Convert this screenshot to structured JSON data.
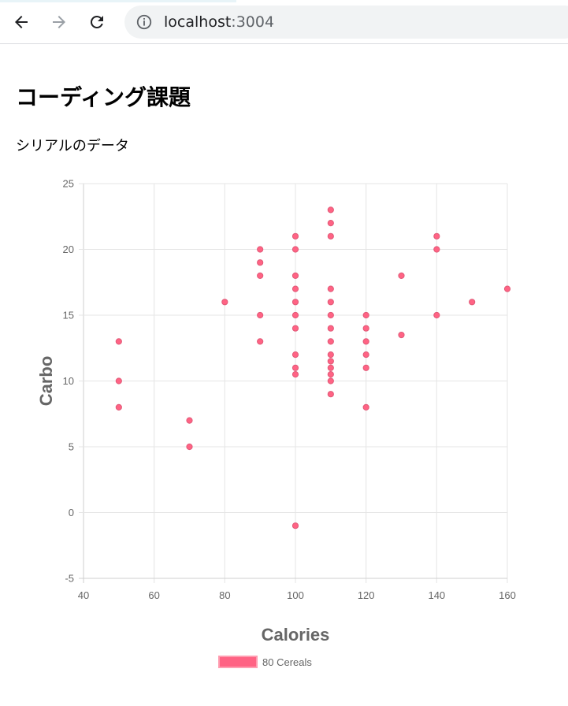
{
  "browser": {
    "url_host": "localhost",
    "url_port": ":3004"
  },
  "page": {
    "title": "コーディング課題",
    "subtitle": "シリアルのデータ"
  },
  "colors": {
    "point_fill": "#ff6384",
    "point_stroke": "#e05a78",
    "grid": "#e5e5e5",
    "axis": "#cfcfcf",
    "text": "#666666"
  },
  "chart_data": {
    "type": "scatter",
    "xlabel": "Calories",
    "ylabel": "Carbo",
    "xlim": [
      40,
      160
    ],
    "ylim": [
      -5,
      25
    ],
    "x_ticks": [
      40,
      60,
      80,
      100,
      120,
      140,
      160
    ],
    "y_ticks": [
      -5,
      0,
      5,
      10,
      15,
      20,
      25
    ],
    "grid": true,
    "legend_position": "bottom",
    "series": [
      {
        "name": "80 Cereals",
        "points": [
          [
            50,
            13
          ],
          [
            50,
            10
          ],
          [
            50,
            8
          ],
          [
            70,
            7
          ],
          [
            70,
            5
          ],
          [
            80,
            16
          ],
          [
            90,
            20
          ],
          [
            90,
            19
          ],
          [
            90,
            18
          ],
          [
            90,
            15
          ],
          [
            90,
            13
          ],
          [
            100,
            21
          ],
          [
            100,
            20
          ],
          [
            100,
            18
          ],
          [
            100,
            17
          ],
          [
            100,
            16
          ],
          [
            100,
            15
          ],
          [
            100,
            14
          ],
          [
            100,
            12
          ],
          [
            100,
            11
          ],
          [
            100,
            10.5
          ],
          [
            100,
            -1
          ],
          [
            110,
            23
          ],
          [
            110,
            22
          ],
          [
            110,
            21
          ],
          [
            110,
            17
          ],
          [
            110,
            16
          ],
          [
            110,
            15
          ],
          [
            110,
            14
          ],
          [
            110,
            13
          ],
          [
            110,
            12
          ],
          [
            110,
            11.5
          ],
          [
            110,
            11
          ],
          [
            110,
            10.5
          ],
          [
            110,
            10
          ],
          [
            110,
            9
          ],
          [
            120,
            15
          ],
          [
            120,
            14
          ],
          [
            120,
            13
          ],
          [
            120,
            12
          ],
          [
            120,
            11
          ],
          [
            120,
            8
          ],
          [
            130,
            18
          ],
          [
            130,
            13.5
          ],
          [
            140,
            21
          ],
          [
            140,
            20
          ],
          [
            140,
            15
          ],
          [
            150,
            16
          ],
          [
            160,
            17
          ]
        ]
      }
    ]
  }
}
